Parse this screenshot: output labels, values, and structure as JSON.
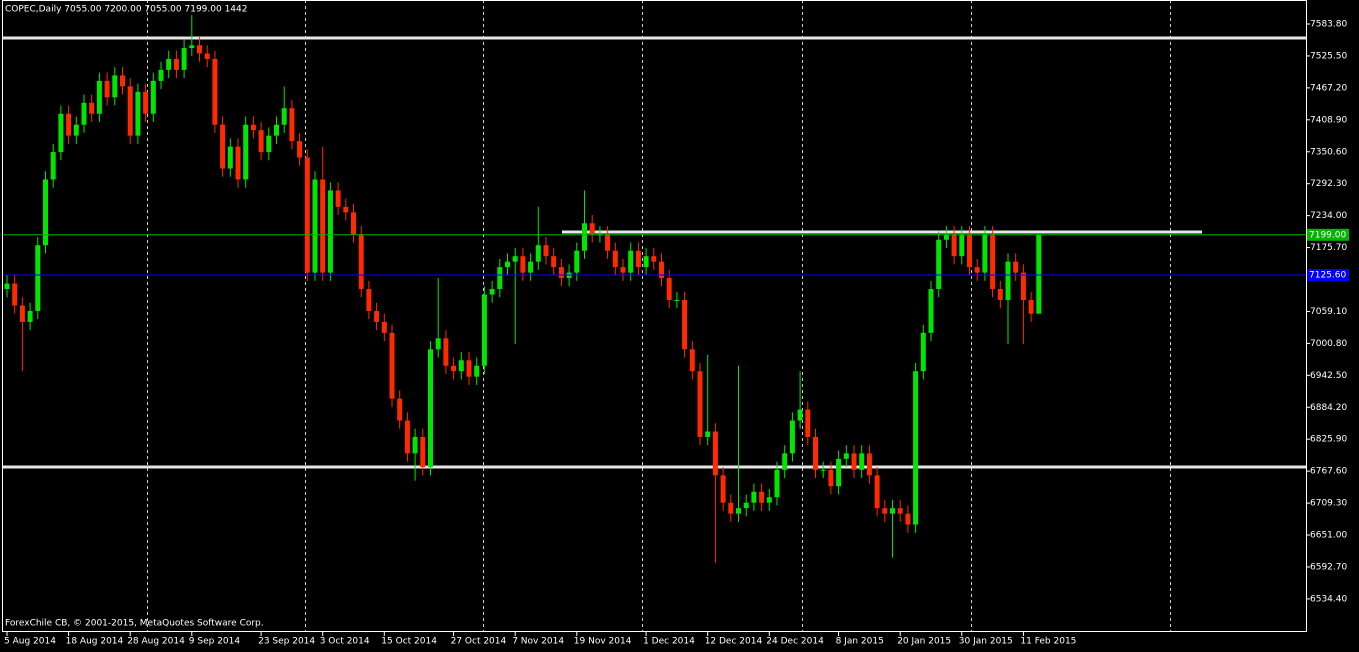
{
  "chart_data": {
    "type": "candlestick",
    "title": "COPEC,Daily  7055.00 7200.00 7055.00 7199.00  1442",
    "footer": "ForexChile CB, © 2001-2015, MetaQuotes Software Corp.",
    "up_color": "#00e600",
    "down_color": "#ff2a00",
    "categories": [
      "5 Aug 2014",
      null,
      null,
      null,
      null,
      null,
      null,
      null,
      "18 Aug 2014",
      null,
      null,
      null,
      null,
      null,
      null,
      null,
      "28 Aug 2014",
      null,
      null,
      null,
      null,
      null,
      null,
      null,
      "9 Sep 2014",
      null,
      null,
      null,
      null,
      null,
      null,
      null,
      null,
      "23 Sep 2014",
      null,
      null,
      null,
      null,
      null,
      null,
      null,
      "3 Oct 2014",
      null,
      null,
      null,
      null,
      null,
      null,
      null,
      "15 Oct 2014",
      null,
      null,
      null,
      null,
      null,
      null,
      null,
      null,
      "27 Oct 2014",
      null,
      null,
      null,
      null,
      null,
      null,
      null,
      "7 Nov 2014",
      null,
      null,
      null,
      null,
      null,
      null,
      null,
      "19 Nov 2014",
      null,
      null,
      null,
      null,
      null,
      null,
      null,
      null,
      "1 Dec 2014",
      null,
      null,
      null,
      null,
      null,
      null,
      null,
      "12 Dec 2014",
      null,
      null,
      null,
      null,
      null,
      null,
      null,
      "24 Dec 2014",
      null,
      null,
      null,
      null,
      null,
      null,
      null,
      null,
      "8 Jan 2015",
      null,
      null,
      null,
      null,
      null,
      null,
      null,
      "20 Jan 2015",
      null,
      null,
      null,
      null,
      null,
      null,
      null,
      "30 Jan 2015",
      null,
      null,
      null,
      null,
      null,
      null,
      null,
      "11 Feb 2015",
      null,
      null
    ],
    "open": [
      7100,
      7110,
      7070,
      7040,
      7060,
      7180,
      7300,
      7350,
      7420,
      7380,
      7400,
      7440,
      7420,
      7480,
      7450,
      7490,
      7470,
      7380,
      7460,
      7420,
      7480,
      7500,
      7520,
      7500,
      7540,
      7545,
      7530,
      7520,
      7400,
      7320,
      7360,
      7300,
      7400,
      7390,
      7350,
      7380,
      7400,
      7430,
      7370,
      7340,
      7130,
      7300,
      7130,
      7280,
      7250,
      7240,
      7200,
      7100,
      7060,
      7040,
      7020,
      6900,
      6860,
      6800,
      6830,
      6775,
      6990,
      7010,
      6960,
      6950,
      6970,
      6940,
      6960,
      7090,
      7100,
      7140,
      7150,
      7160,
      7130,
      7150,
      7180,
      7160,
      7140,
      7120,
      7130,
      7170,
      7220,
      7200,
      7200,
      7170,
      7140,
      7130,
      7170,
      7140,
      7160,
      7150,
      7120,
      7080,
      7080,
      6990,
      6950,
      6830,
      6840,
      6760,
      6710,
      6690,
      6700,
      6710,
      6730,
      6710,
      6720,
      6770,
      6800,
      6860,
      6880,
      6830,
      6770,
      6770,
      6740,
      6790,
      6800,
      6770,
      6800,
      6760,
      6700,
      6690,
      6700,
      6690,
      6670,
      6950,
      7020,
      7100,
      7190,
      7200,
      7160,
      7200,
      7140,
      7130,
      7200,
      7100,
      7080,
      7150,
      7130,
      7080,
      7055
    ],
    "high": [
      7125,
      7125,
      7085,
      7075,
      7195,
      7315,
      7365,
      7435,
      7435,
      7415,
      7455,
      7455,
      7495,
      7495,
      7505,
      7505,
      7485,
      7475,
      7475,
      7495,
      7515,
      7535,
      7535,
      7555,
      7600,
      7560,
      7545,
      7535,
      7415,
      7375,
      7375,
      7415,
      7415,
      7405,
      7395,
      7415,
      7470,
      7445,
      7385,
      7355,
      7315,
      7360,
      7295,
      7295,
      7265,
      7255,
      7215,
      7115,
      7075,
      7055,
      7035,
      6915,
      6875,
      6845,
      6845,
      7005,
      7120,
      7025,
      6975,
      6985,
      6985,
      6975,
      7105,
      7115,
      7155,
      7165,
      7175,
      7175,
      7165,
      7250,
      7195,
      7175,
      7155,
      7145,
      7185,
      7280,
      7235,
      7215,
      7215,
      7185,
      7155,
      7185,
      7185,
      7175,
      7175,
      7165,
      7135,
      7095,
      7095,
      7005,
      6965,
      6980,
      6855,
      6775,
      6725,
      6960,
      6725,
      6745,
      6745,
      6735,
      6785,
      6815,
      6875,
      6950,
      6895,
      6845,
      6785,
      6785,
      6805,
      6815,
      6815,
      6815,
      6815,
      6775,
      6715,
      6715,
      6715,
      6705,
      6965,
      7035,
      7115,
      7205,
      7215,
      7215,
      7215,
      7215,
      7155,
      7215,
      7215,
      7115,
      7165,
      7165,
      7145,
      7095,
      7200
    ],
    "low": [
      7085,
      7055,
      6950,
      7025,
      7045,
      7165,
      7285,
      7335,
      7365,
      7365,
      7385,
      7405,
      7405,
      7435,
      7435,
      7455,
      7365,
      7365,
      7405,
      7405,
      7465,
      7485,
      7485,
      7485,
      7525,
      7515,
      7505,
      7385,
      7305,
      7305,
      7285,
      7285,
      7375,
      7335,
      7335,
      7365,
      7385,
      7355,
      7325,
      7115,
      7115,
      7115,
      7115,
      7235,
      7225,
      7185,
      7085,
      7045,
      7025,
      7005,
      6885,
      6845,
      6785,
      6750,
      6760,
      6760,
      6975,
      6945,
      6935,
      6935,
      6925,
      6925,
      6945,
      7075,
      7085,
      7125,
      7000,
      7115,
      7115,
      7135,
      7145,
      7125,
      7105,
      7105,
      7115,
      7155,
      7185,
      7185,
      7155,
      7125,
      7115,
      7115,
      7125,
      7125,
      7135,
      7105,
      7065,
      7065,
      6975,
      6935,
      6815,
      6815,
      6600,
      6695,
      6675,
      6675,
      6685,
      6695,
      6695,
      6695,
      6705,
      6755,
      6785,
      6845,
      6815,
      6755,
      6755,
      6725,
      6725,
      6775,
      6755,
      6755,
      6745,
      6685,
      6675,
      6610,
      6675,
      6655,
      6655,
      6935,
      7005,
      7085,
      7175,
      7145,
      7145,
      7125,
      7115,
      7115,
      7085,
      7065,
      7000,
      7115,
      7000,
      7040,
      7055
    ],
    "close": [
      7110,
      7070,
      7040,
      7060,
      7180,
      7300,
      7350,
      7420,
      7380,
      7400,
      7440,
      7420,
      7480,
      7450,
      7490,
      7470,
      7380,
      7460,
      7420,
      7480,
      7500,
      7520,
      7500,
      7540,
      7545,
      7530,
      7520,
      7400,
      7320,
      7360,
      7300,
      7400,
      7390,
      7350,
      7380,
      7400,
      7430,
      7370,
      7340,
      7130,
      7300,
      7130,
      7280,
      7250,
      7240,
      7200,
      7100,
      7060,
      7040,
      7020,
      6900,
      6860,
      6800,
      6830,
      6775,
      6990,
      7010,
      6960,
      6950,
      6970,
      6940,
      6960,
      7090,
      7100,
      7140,
      7150,
      7160,
      7130,
      7150,
      7180,
      7160,
      7140,
      7120,
      7130,
      7170,
      7220,
      7200,
      7200,
      7170,
      7140,
      7130,
      7170,
      7140,
      7160,
      7150,
      7120,
      7080,
      7080,
      6990,
      6950,
      6830,
      6840,
      6760,
      6710,
      6690,
      6700,
      6710,
      6730,
      6710,
      6720,
      6770,
      6800,
      6860,
      6880,
      6830,
      6770,
      6770,
      6740,
      6790,
      6800,
      6770,
      6800,
      6760,
      6700,
      6690,
      6700,
      6690,
      6670,
      6950,
      7020,
      7100,
      7190,
      7200,
      7160,
      7200,
      7140,
      7130,
      7200,
      7100,
      7080,
      7150,
      7130,
      7080,
      7055,
      7199
    ],
    "ylim": [
      6474,
      7627.6
    ],
    "yticks": [
      {
        "value": 7583.8,
        "label": "7583.80"
      },
      {
        "value": 7525.5,
        "label": "7525.50"
      },
      {
        "value": 7467.2,
        "label": "7467.20"
      },
      {
        "value": 7408.9,
        "label": "7408.90"
      },
      {
        "value": 7350.6,
        "label": "7350.60"
      },
      {
        "value": 7292.3,
        "label": "7292.30"
      },
      {
        "value": 7234.0,
        "label": "7234.00"
      },
      {
        "value": 7175.7,
        "label": "7175.70"
      },
      {
        "value": 7059.1,
        "label": "7059.10"
      },
      {
        "value": 7000.8,
        "label": "7000.80"
      },
      {
        "value": 6942.5,
        "label": "6942.50"
      },
      {
        "value": 6884.2,
        "label": "6884.20"
      },
      {
        "value": 6825.9,
        "label": "6825.90"
      },
      {
        "value": 6767.6,
        "label": "6767.60"
      },
      {
        "value": 6709.3,
        "label": "6709.30"
      },
      {
        "value": 6651.0,
        "label": "6651.00"
      },
      {
        "value": 6592.7,
        "label": "6592.70"
      },
      {
        "value": 6534.4,
        "label": "6534.40"
      }
    ],
    "lines": [
      {
        "value": 7558.2,
        "color": "#e6e6e6"
      },
      {
        "value": 6775.1,
        "color": "#e6e6e6"
      },
      {
        "value": 7204.1,
        "color": "#e6e6e6"
      }
    ],
    "price_lines": [
      {
        "value": 7199,
        "label": "7199.00",
        "color": "#00b400"
      },
      {
        "value": 7125.6,
        "label": "7125.60",
        "color": "#0000ff"
      }
    ]
  }
}
